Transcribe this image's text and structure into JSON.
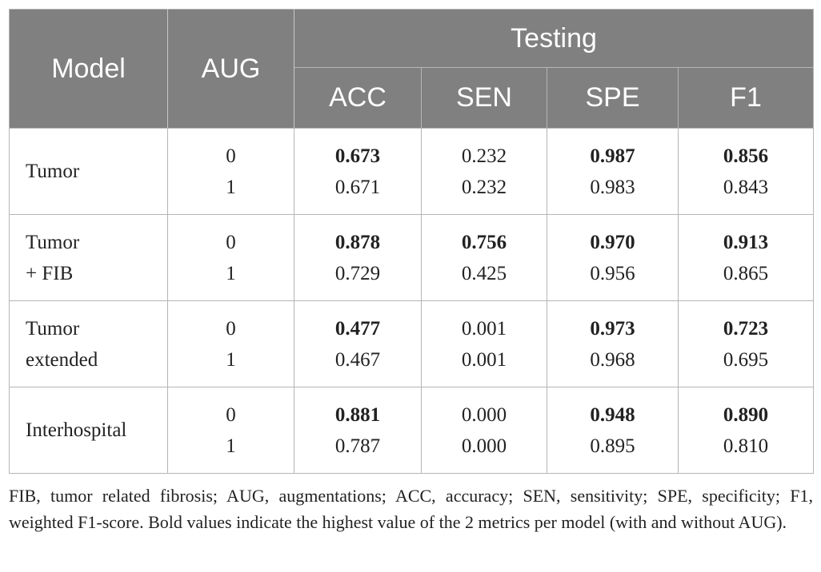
{
  "table": {
    "header": {
      "model": "Model",
      "aug": "AUG",
      "group": "Testing",
      "metrics": [
        "ACC",
        "SEN",
        "SPE",
        "F1"
      ]
    },
    "rows": [
      {
        "model_lines": [
          "Tumor"
        ],
        "aug": [
          "0",
          "1"
        ],
        "acc": [
          {
            "v": "0.673",
            "b": true
          },
          {
            "v": "0.671",
            "b": false
          }
        ],
        "sen": [
          {
            "v": "0.232",
            "b": false
          },
          {
            "v": "0.232",
            "b": false
          }
        ],
        "spe": [
          {
            "v": "0.987",
            "b": true
          },
          {
            "v": "0.983",
            "b": false
          }
        ],
        "f1": [
          {
            "v": "0.856",
            "b": true
          },
          {
            "v": "0.843",
            "b": false
          }
        ]
      },
      {
        "model_lines": [
          "Tumor",
          "+ FIB"
        ],
        "aug": [
          "0",
          "1"
        ],
        "acc": [
          {
            "v": "0.878",
            "b": true
          },
          {
            "v": "0.729",
            "b": false
          }
        ],
        "sen": [
          {
            "v": "0.756",
            "b": true
          },
          {
            "v": "0.425",
            "b": false
          }
        ],
        "spe": [
          {
            "v": "0.970",
            "b": true
          },
          {
            "v": "0.956",
            "b": false
          }
        ],
        "f1": [
          {
            "v": "0.913",
            "b": true
          },
          {
            "v": "0.865",
            "b": false
          }
        ]
      },
      {
        "model_lines": [
          "Tumor",
          "extended"
        ],
        "aug": [
          "0",
          "1"
        ],
        "acc": [
          {
            "v": "0.477",
            "b": true
          },
          {
            "v": "0.467",
            "b": false
          }
        ],
        "sen": [
          {
            "v": "0.001",
            "b": false
          },
          {
            "v": "0.001",
            "b": false
          }
        ],
        "spe": [
          {
            "v": "0.973",
            "b": true
          },
          {
            "v": "0.968",
            "b": false
          }
        ],
        "f1": [
          {
            "v": "0.723",
            "b": true
          },
          {
            "v": "0.695",
            "b": false
          }
        ]
      },
      {
        "model_lines": [
          "Interhospital"
        ],
        "aug": [
          "0",
          "1"
        ],
        "acc": [
          {
            "v": "0.881",
            "b": true
          },
          {
            "v": "0.787",
            "b": false
          }
        ],
        "sen": [
          {
            "v": "0.000",
            "b": false
          },
          {
            "v": "0.000",
            "b": false
          }
        ],
        "spe": [
          {
            "v": "0.948",
            "b": true
          },
          {
            "v": "0.895",
            "b": false
          }
        ],
        "f1": [
          {
            "v": "0.890",
            "b": true
          },
          {
            "v": "0.810",
            "b": false
          }
        ]
      }
    ]
  },
  "caption": "FIB, tumor related fibrosis; AUG, augmentations; ACC, accuracy; SEN, sensitivity; SPE, specificity; F1, weighted F1-score. Bold values indicate the highest value of the 2 metrics per model (with and without AUG).",
  "colors": {
    "header_bg": "#808080",
    "header_text": "#ffffff",
    "border": "#b5b5b5",
    "text": "#222222"
  }
}
